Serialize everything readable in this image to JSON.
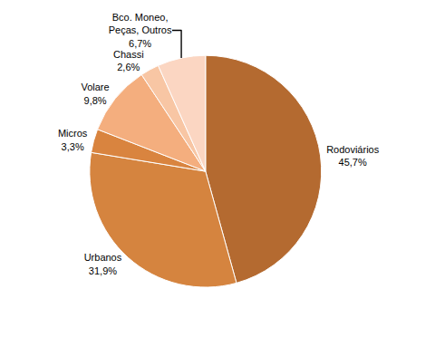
{
  "chart_data": {
    "type": "pie",
    "categories": [
      "Rodoviários",
      "Urbanos",
      "Micros",
      "Volare",
      "Chassi",
      "Bco. Moneo,\nPeças, Outros"
    ],
    "values": [
      45.7,
      31.9,
      3.3,
      9.8,
      2.6,
      6.7
    ],
    "value_labels": [
      "45,7%",
      "31,9%",
      "3,3%",
      "9,8%",
      "2,6%",
      "6,7%"
    ],
    "colors": [
      "#b46a30",
      "#d5843f",
      "#d9843f",
      "#f4ae7e",
      "#f8c6a4",
      "#fbd6c2"
    ],
    "data_labels": true
  }
}
